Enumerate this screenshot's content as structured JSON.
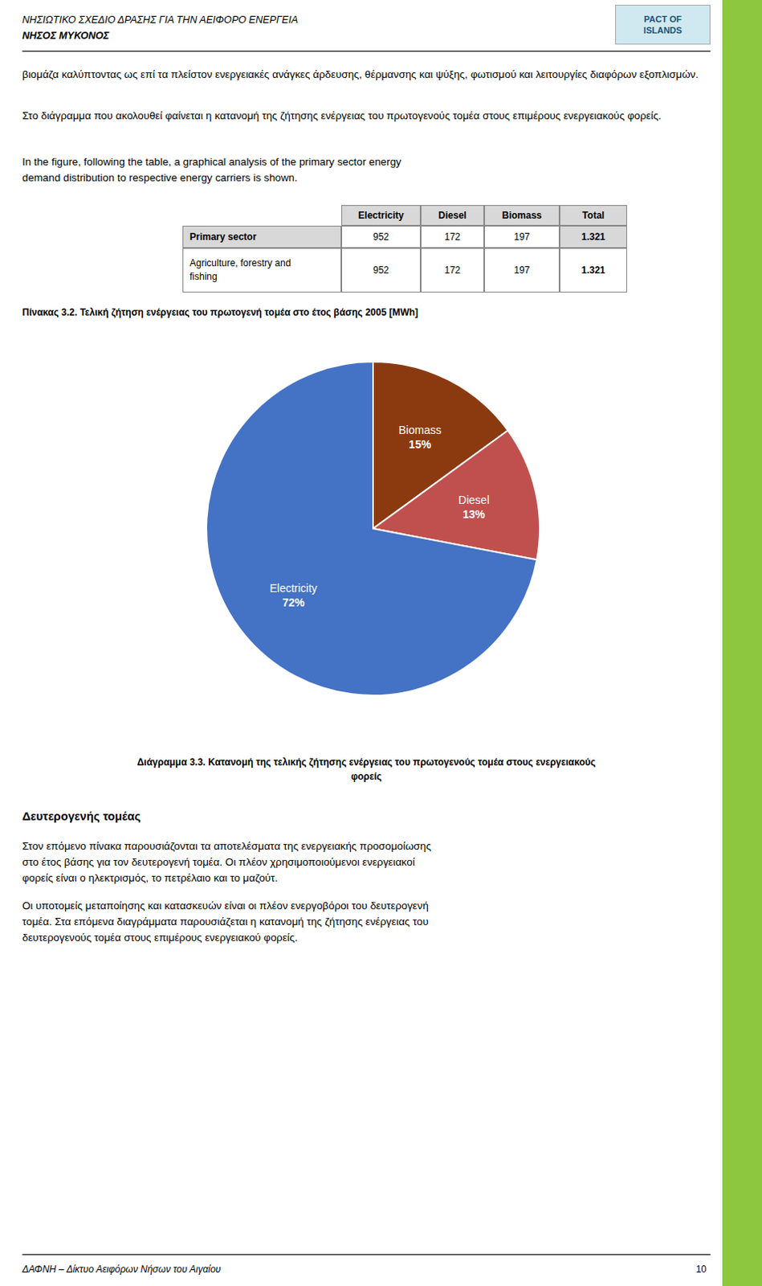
{
  "chart_data": {
    "type": "pie",
    "categories": [
      "Biomass",
      "Diesel",
      "Electricity"
    ],
    "values": [
      15,
      13,
      72
    ],
    "value_labels": [
      "15%",
      "13%",
      "72%"
    ],
    "colors": [
      "#8b3a10",
      "#c0504d",
      "#4472c4"
    ],
    "data_labels": true
  },
  "page": {
    "background_color": "#ffffff",
    "accent_color": "#8dc63f",
    "header": [
      "ΝΗΣΙΩΤΙΚΟ ΣΧΕΔΙΟ ΔΡΑΣΗΣ ΓΙΑ ΤΗΝ ΑΕΙΦΟΡΟ ΕΝΕΡΓΕΙΑ",
      "ΝΗΣΟΣ ΜΥΚΟΝΟΣ"
    ],
    "logo_text": [
      "PACT OF",
      "ISLANDS"
    ],
    "paragraphs": [
      [
        "βιομάζα καλύπτοντας ως επί τα πλείστον ενεργειακές ανάγκες άρδευσης, θέρμανσης και ψύξης, φωτισμού και λειτουργίες διαφόρων εξοπλισμών."
      ],
      [
        "Στο διάγραμμα που ακολουθεί φαίνεται η κατανομή της ζήτησης ενέργειας του πρωτογενούς τομέα στους επιμέρους ενεργειακούς φορείς."
      ],
      [
        "In the figure, following the table, a graphical analysis of the primary sector energy",
        "demand distribution to respective energy carriers is shown."
      ]
    ],
    "table": {
      "headers": [
        "Electricity",
        "Diesel",
        "Biomass",
        "Total"
      ],
      "rows": [
        {
          "label": [
            "Primary sector"
          ],
          "values": [
            "952",
            "172",
            "197",
            "1.321"
          ]
        },
        {
          "label": [
            "Agriculture, forestry and",
            "fishing"
          ],
          "values": [
            "952",
            "172",
            "197",
            "1.321"
          ]
        }
      ]
    },
    "table_caption": "Πίνακας 3.2. Τελική ζήτηση ενέργειας του πρωτογενή τομέα στο έτος βάσης 2005 [MWh]",
    "chart_caption": [
      "Διάγραμμα 3.3. Κατανομή της τελικής ζήτησης ενέργειας του πρωτογενούς τομέα στους ενεργειακούς",
      "φορείς"
    ],
    "section_header": "Δευτερογενής τομέας",
    "section_paragraphs": [
      [
        "Στον επόμενο πίνακα παρουσιάζονται τα αποτελέσματα της ενεργειακής προσομοίωσης",
        "στο έτος βάσης για τον δευτερογενή τομέα. Οι πλέον χρησιμοποιούμενοι ενεργειακοί",
        "φορείς είναι ο ηλεκτρισμός, το πετρέλαιο και το μαζούτ."
      ],
      [
        "Οι υποτομείς μεταποίησης και κατασκευών είναι οι πλέον ενεργοβόροι του δευτερογενή",
        "τομέα. Στα επόμενα διαγράμματα παρουσιάζεται η κατανομή της ζήτησης ενέργειας του",
        "δευτερογενούς τομέα στους επιμέρους ενεργειακού φορείς."
      ]
    ],
    "footer_left": "ΔΑΦΝΗ – Δίκτυο Αειφόρων Νήσων του Αιγαίου",
    "footer_right": "10"
  }
}
